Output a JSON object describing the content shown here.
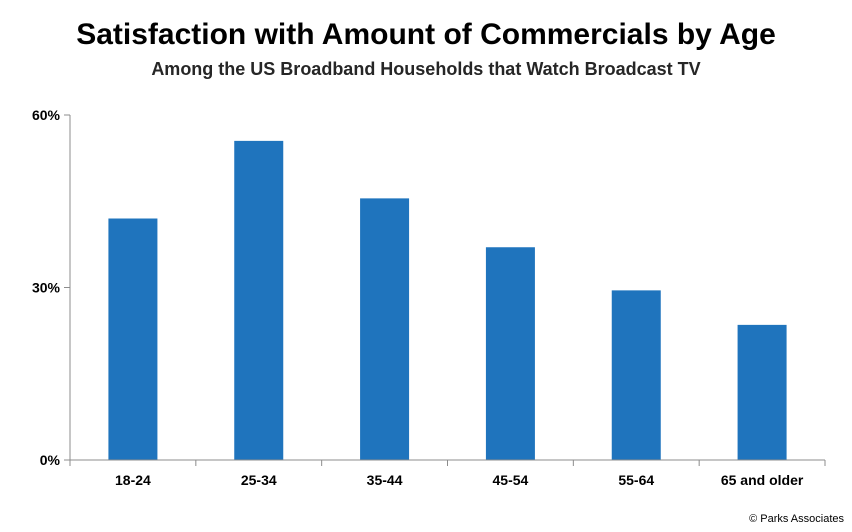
{
  "chart_data": {
    "type": "bar",
    "title": "Satisfaction with Amount of Commercials by Age",
    "subtitle": "Among the US Broadband Households that Watch Broadcast TV",
    "categories": [
      "18-24",
      "25-34",
      "35-44",
      "45-54",
      "55-64",
      "65 and older"
    ],
    "values": [
      42,
      55.5,
      45.5,
      37,
      29.5,
      23.5
    ],
    "unit": "%",
    "ylim": [
      0,
      60
    ],
    "yticks": [
      0,
      30,
      60
    ],
    "ytick_labels": [
      "0%",
      "30%",
      "60%"
    ],
    "xlabel": "",
    "ylabel": "",
    "grid": false,
    "legend": "none",
    "bar_color": "#1F74BD"
  },
  "source": "© Parks Associates"
}
